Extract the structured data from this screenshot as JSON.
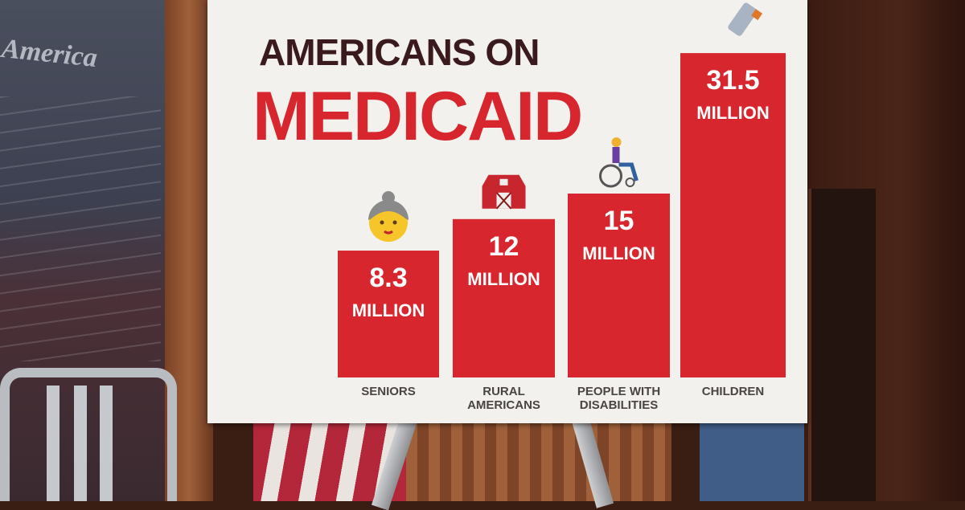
{
  "scene": {
    "banner_text": "America"
  },
  "chart_data": {
    "type": "bar",
    "title": "AMERICANS ON",
    "subtitle": "MEDICAID",
    "categories": [
      [
        "SENIORS"
      ],
      [
        "RURAL",
        "AMERICANS"
      ],
      [
        "PEOPLE WITH",
        "DISABILITIES"
      ],
      [
        "CHILDREN"
      ]
    ],
    "values": [
      8.3,
      12,
      15,
      31.5
    ],
    "value_labels": [
      "8.3",
      "12",
      "15",
      "31.5"
    ],
    "unit_label": "MILLION",
    "icons": [
      "older-woman-icon",
      "barn-icon",
      "person-in-wheelchair-icon",
      "baby-bottle-icon"
    ],
    "bar_color": "#d7262e",
    "title_color": "#3a1a1c",
    "subtitle_color": "#d7262e",
    "grid": false,
    "legend": "none",
    "xlabel": "",
    "ylabel": ""
  }
}
